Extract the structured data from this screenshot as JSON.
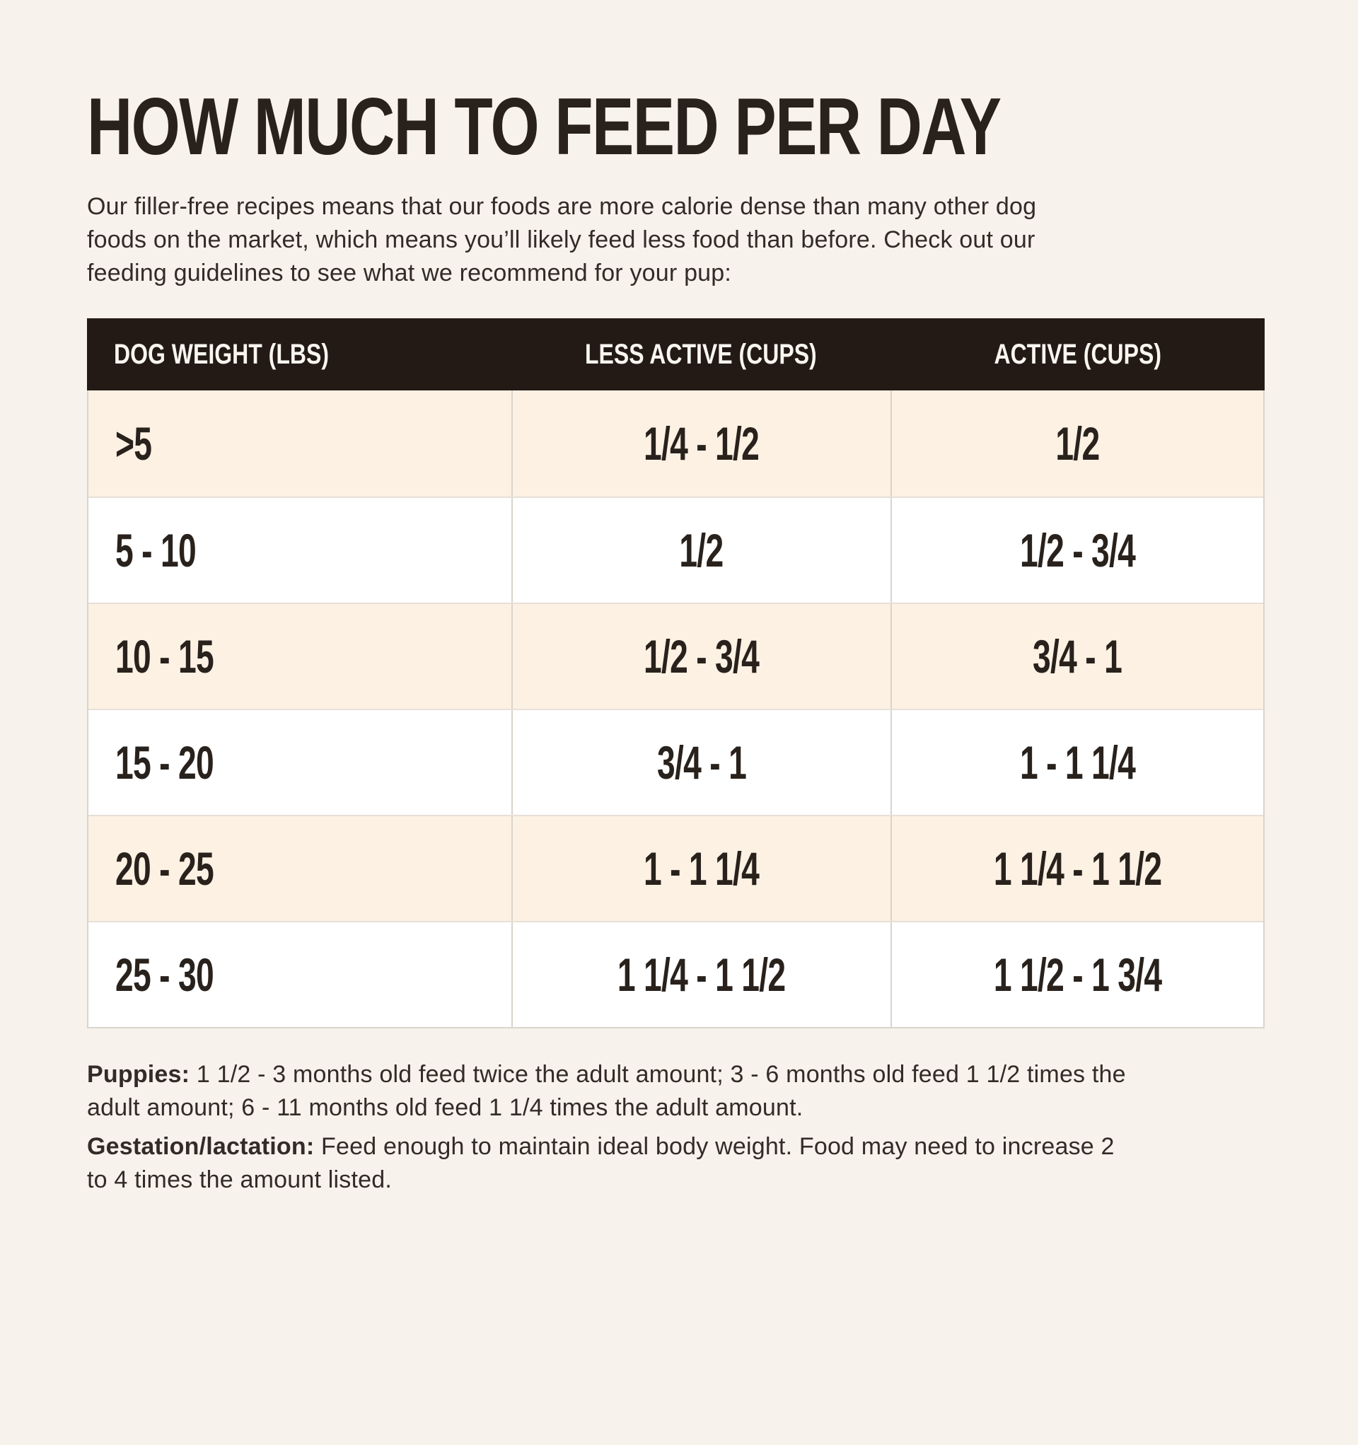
{
  "page": {
    "title": "HOW MUCH TO FEED PER DAY",
    "intro_lines": [
      "Our filler-free recipes means that our foods are more calorie dense than many other dog",
      "foods on the market, which means you’ll likely feed less food than before. Check out our",
      "feeding guidelines to see what we recommend for your pup:"
    ]
  },
  "chart_data": {
    "type": "table",
    "title": "HOW MUCH TO FEED PER DAY",
    "columns": [
      "DOG WEIGHT (LBS)",
      "LESS ACTIVE (CUPS)",
      "ACTIVE (CUPS)"
    ],
    "rows": [
      [
        ">5",
        "1/4 - 1/2",
        "1/2"
      ],
      [
        "5 - 10",
        "1/2",
        "1/2 - 3/4"
      ],
      [
        "10 - 15",
        "1/2 - 3/4",
        "3/4 - 1"
      ],
      [
        "15 - 20",
        "3/4 - 1",
        "1 - 1 1/4"
      ],
      [
        "20 - 25",
        "1 - 1 1/4",
        "1 1/4 - 1 1/2"
      ],
      [
        "25 - 30",
        "1 1/4 - 1 1/2",
        "1 1/2 - 1 3/4"
      ]
    ]
  },
  "notes": {
    "puppies": {
      "label": "Puppies:",
      "lines": [
        "1 1/2 - 3 months old feed twice the adult amount; 3 - 6 months old feed 1 1/2 times the",
        "adult amount; 6 - 11 months old feed 1 1/4 times the adult amount."
      ]
    },
    "gestation": {
      "label": "Gestation/lactation:",
      "lines": [
        "Feed enough to maintain ideal body weight. Food may need to increase 2",
        "to 4 times the amount listed."
      ]
    }
  },
  "colors": {
    "page_bg": "#f7f2eb",
    "header_bg": "#231a15",
    "header_text": "#f9f5ef",
    "row_cream": "#fcf1e3",
    "row_white": "#ffffff",
    "ink": "#29211c",
    "body_text": "#322b27",
    "divider": "#d9d4cc",
    "row_line": "#e6e0d7"
  }
}
